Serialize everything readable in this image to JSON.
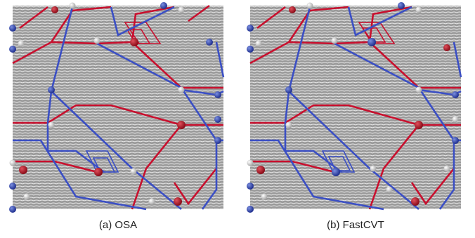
{
  "figure": {
    "panels": [
      {
        "caption": "(a) OSA"
      },
      {
        "caption": "(b) FastCVT"
      }
    ],
    "colors": {
      "stable_curve": "#c8102e",
      "unstable_curve": "#3b4fc4",
      "sink_node": "#1f2f8f",
      "source_node": "#a0101c",
      "saddle_node": "#d0d0d0",
      "flow_texture": "#8a8a8a"
    }
  }
}
